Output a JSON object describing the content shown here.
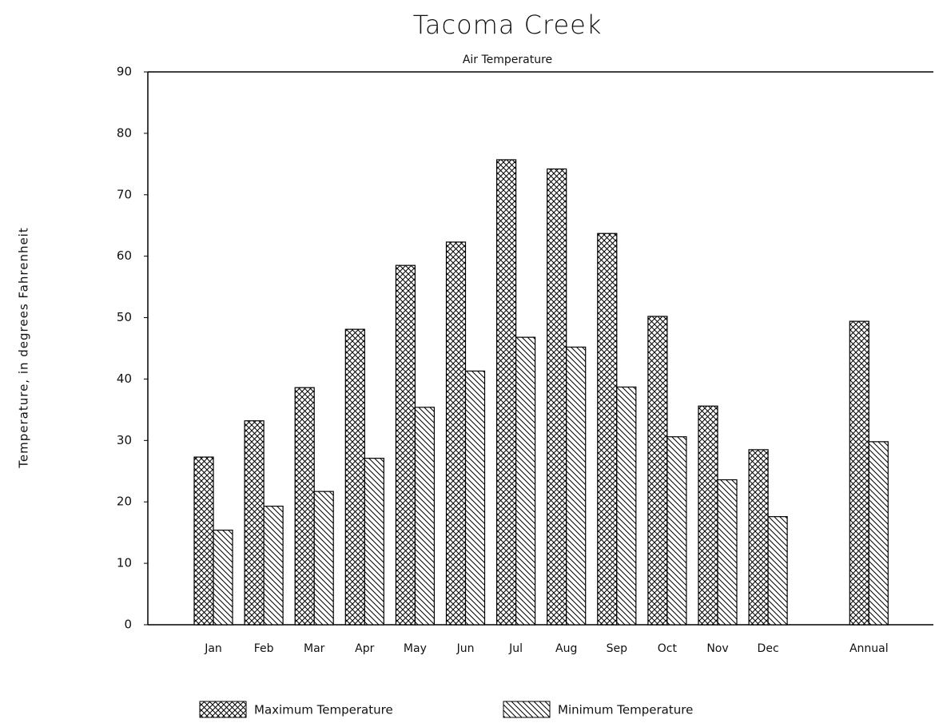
{
  "chart_data": {
    "type": "bar",
    "title": "Tacoma Creek",
    "subtitle": "Air Temperature",
    "y_label": "Temperature, in degrees Fahrenheit",
    "categories": [
      "Jan",
      "Feb",
      "Mar",
      "Apr",
      "May",
      "Jun",
      "Jul",
      "Aug",
      "Sep",
      "Oct",
      "Nov",
      "Dec",
      "Annual"
    ],
    "series": [
      {
        "name": "Maximum Temperature",
        "color": "#000000",
        "hatch": "cross",
        "values": [
          27.3,
          33.2,
          38.6,
          48.1,
          58.5,
          62.3,
          75.7,
          74.2,
          63.7,
          50.2,
          35.6,
          28.5,
          49.4
        ]
      },
      {
        "name": "Minimum Temperature",
        "color": "#000000",
        "hatch": "diagonal",
        "values": [
          15.4,
          19.3,
          21.7,
          27.1,
          35.4,
          41.3,
          46.8,
          45.2,
          38.7,
          30.6,
          23.6,
          17.6,
          29.8
        ]
      }
    ],
    "ylim": [
      0,
      90
    ],
    "yticks": [
      0,
      10,
      20,
      30,
      40,
      50,
      60,
      70,
      80,
      90
    ],
    "legend": "bottom"
  }
}
